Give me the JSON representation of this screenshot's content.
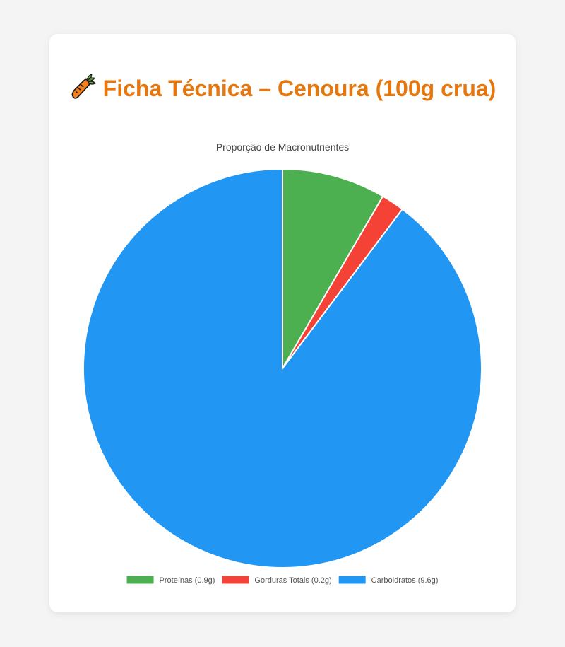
{
  "page": {
    "title": "Ficha Técnica – Cenoura (100g crua)",
    "title_icon": "carrot-icon",
    "title_color": "#e6770f",
    "background": "#f4f4f4"
  },
  "chart_data": {
    "type": "pie",
    "title": "Proporção de Macronutrientes",
    "categories": [
      "Proteínas (0.9g)",
      "Gorduras Totais (0.2g)",
      "Carboidratos (9.6g)"
    ],
    "values": [
      0.9,
      0.2,
      9.6
    ],
    "colors": [
      "#4caf50",
      "#f44336",
      "#2196f3"
    ],
    "legend_position": "bottom",
    "start_angle": "top",
    "direction": "clockwise"
  }
}
